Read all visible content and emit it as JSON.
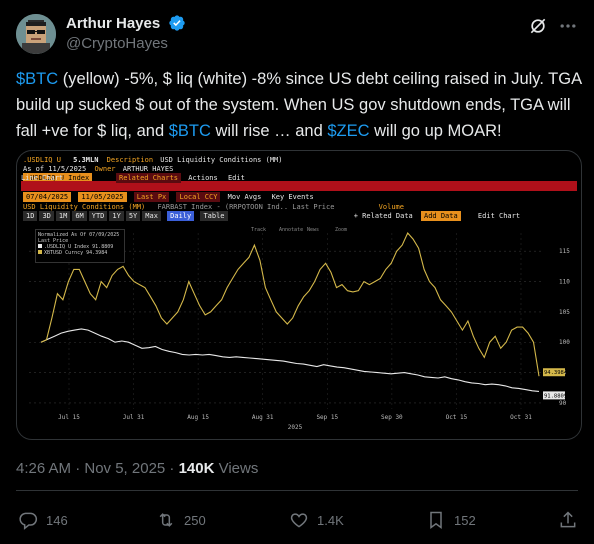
{
  "author": {
    "display_name": "Arthur Hayes",
    "handle": "@CryptoHayes"
  },
  "tweet": {
    "segments": [
      {
        "text": "$BTC",
        "type": "tag"
      },
      {
        "text": " (yellow) -5%, $ liq (white) -8% since US debt ceiling raised in July. TGA build up sucked $ out of the system. When US gov shutdown ends, TGA will fall +ve for $ liq, and ",
        "type": "text"
      },
      {
        "text": "$BTC",
        "type": "tag"
      },
      {
        "text": " will rise … and ",
        "type": "text"
      },
      {
        "text": "$ZEC",
        "type": "tag"
      },
      {
        "text": " will go up MOAR!",
        "type": "text"
      }
    ]
  },
  "meta": {
    "timestamp": "4:26 AM · Nov 5, 2025 · ",
    "views_count": "140K",
    "views_label": " Views"
  },
  "actions": {
    "replies": "146",
    "reposts": "250",
    "likes": "1.4K",
    "bookmarks": "152"
  },
  "colors": {
    "accent": "#1d9bf0",
    "btc_line": "#d4b84a",
    "liq_line": "#e8e8e8"
  },
  "terminal": {
    "ticker": ".USDLIQ U",
    "value": "5.3MLN",
    "description_label": "Description",
    "description": "USD Liquidity Conditions (MM)",
    "asof": "As of 11/5/2025",
    "owner_label": "Owner",
    "owner": "ARTHUR HAYES",
    "index_field": ".USDLIQ U Index",
    "related_label": "Related Charts",
    "actions_label": "Actions",
    "edit_label": "Edit",
    "chart_type": "Line Chart",
    "date_start": "07/04/2025",
    "date_end": "11/05/2025",
    "last_px": "Last Px",
    "local_ccy": "Local CCY",
    "mov_avgs": "Mov Avgs",
    "key_events": "Key Events",
    "series1_name": "USD Liquidity Conditions (MM)",
    "series2_name": "FARBAST Index - (RRPQTOON Ind.. Last Price",
    "volume_label": "Volume",
    "add_data": "Add Data",
    "periods": [
      "1D",
      "3D",
      "1M",
      "6M",
      "YTD",
      "1Y",
      "5Y",
      "Max"
    ],
    "daily": "Daily",
    "table_label": "Table",
    "related_data": "+ Related Data",
    "edit_chart": "Edit Chart",
    "tools": [
      "Track",
      "Annotate",
      "News",
      "Zoom"
    ],
    "legend_title": "Normalized As Of 07/09/2025",
    "legend_sub": "Last Price",
    "legend_s1": ".USDLIQ U Index 91.8809",
    "legend_s2": "XBTUSD Curncy 94.3984",
    "btc_last": "94.3984",
    "liq_last": "91.8809"
  },
  "chart_data": {
    "type": "line",
    "xlabel": "2025",
    "x_ticks": [
      "Jul 15",
      "Jul 31",
      "Aug 15",
      "Aug 31",
      "Sep 15",
      "Sep 30",
      "Oct 15",
      "Oct 31"
    ],
    "y_ticks": [
      90,
      95,
      100,
      105,
      110,
      115
    ],
    "ylim": [
      89,
      118
    ],
    "series": [
      {
        "name": "XBTUSD Curncy",
        "color": "#d4b84a",
        "values": [
          100,
          100.4,
          104,
          108,
          107,
          110,
          112,
          112,
          110,
          108,
          107,
          110,
          109,
          111,
          112,
          112.5,
          111,
          110,
          109.5,
          109,
          107.5,
          106,
          104,
          103,
          104,
          105,
          107,
          110,
          108,
          106,
          104.5,
          105,
          106,
          107,
          109,
          110.5,
          112,
          113,
          114,
          116,
          113.5,
          109,
          107,
          105,
          104,
          103,
          104,
          106,
          107.5,
          108.5,
          110,
          112,
          113,
          111.5,
          109,
          109.5,
          108.5,
          108.3,
          108.5,
          110,
          109.5,
          110,
          110.5,
          112,
          113,
          115,
          116,
          118,
          117,
          115.5,
          112,
          110,
          109,
          107,
          106,
          105,
          103.5,
          102,
          103.5,
          101,
          99,
          97.5,
          100,
          101,
          99,
          100,
          102,
          102.5,
          102.5,
          101.5,
          100,
          94.4
        ]
      },
      {
        "name": ".USDLIQ U Index",
        "color": "#e8e8e8",
        "values": [
          100,
          100.5,
          101,
          101.5,
          101.8,
          102,
          102.2,
          102,
          101.5,
          101,
          100.6,
          100,
          100.2,
          100,
          99.5,
          99,
          99.1,
          99.3,
          98.8,
          98.5,
          98.3,
          98,
          97.9,
          98,
          97.9,
          98,
          97.8,
          97.6,
          97.5,
          97.6,
          97.5,
          97.4,
          97.3,
          97.2,
          97.1,
          97,
          96.9,
          96.7,
          96.5,
          96.4,
          96.2,
          96,
          96.3,
          96.1,
          95.9,
          95.8,
          95.6,
          95.4,
          95.2,
          95.1,
          95,
          94.9,
          94.8,
          94.9,
          95,
          94.8,
          94.6,
          94.3,
          94.2,
          94.1,
          94.3,
          94,
          93.8,
          93.5,
          93.3,
          93.2,
          93,
          93.1,
          93,
          92.8,
          92.5,
          92.4,
          92.2,
          92,
          91.9
        ]
      }
    ]
  }
}
